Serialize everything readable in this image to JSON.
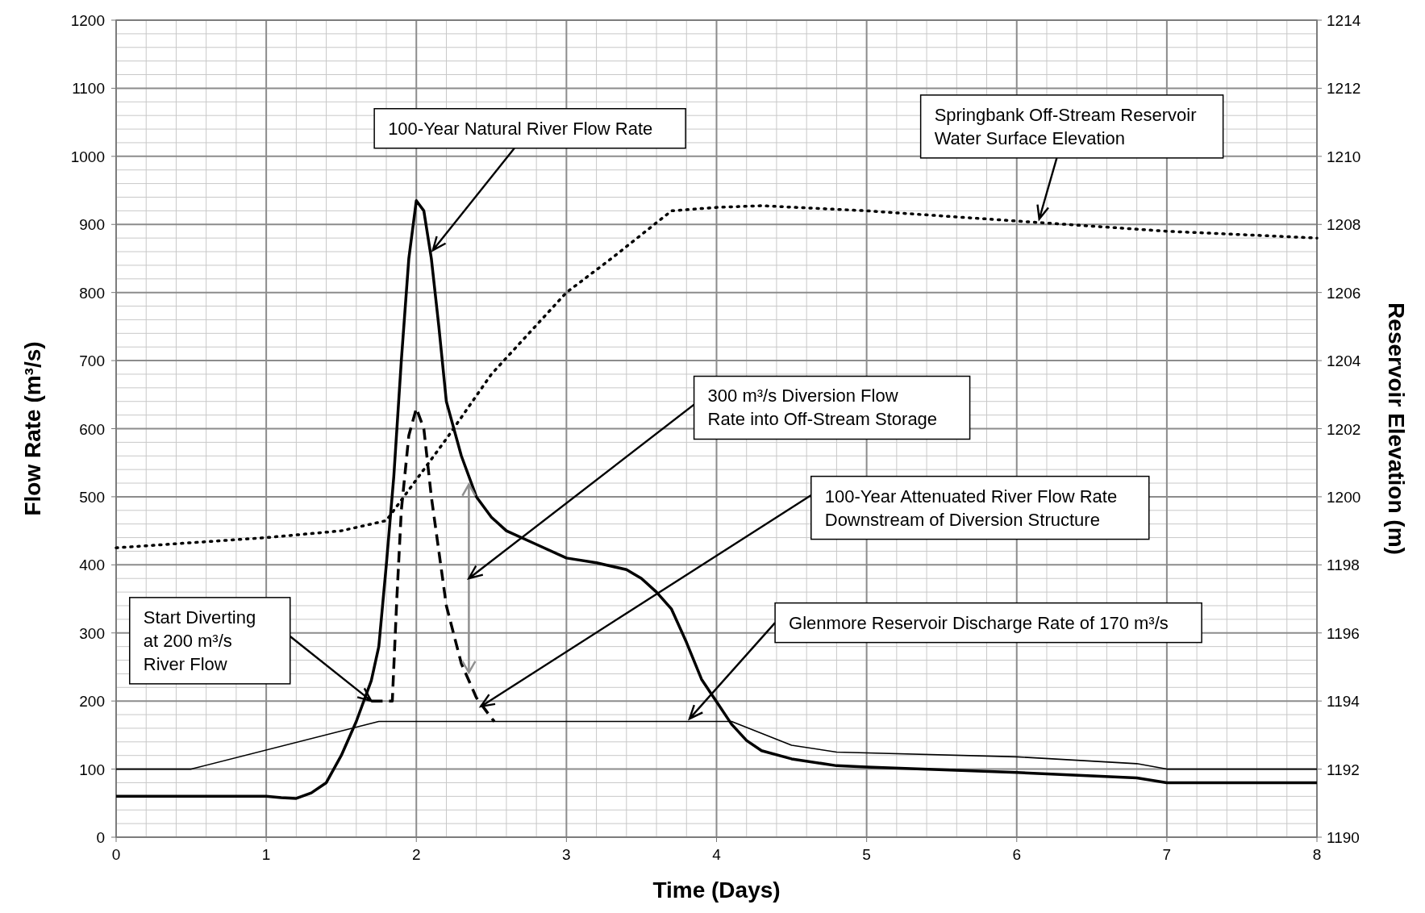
{
  "chart_data": {
    "type": "line",
    "xlabel": "Time (Days)",
    "ylabel": "Flow Rate (m³/s)",
    "y2label": "Reservoir Elevation (m)",
    "xlim": [
      0,
      8
    ],
    "xticks": [
      0,
      1,
      2,
      3,
      4,
      5,
      6,
      7,
      8
    ],
    "ylim": [
      0,
      1200
    ],
    "yticks": [
      0,
      100,
      200,
      300,
      400,
      500,
      600,
      700,
      800,
      900,
      1000,
      1100,
      1200
    ],
    "y2lim": [
      1190,
      1214
    ],
    "y2ticks": [
      1190,
      1192,
      1194,
      1196,
      1198,
      1200,
      1202,
      1204,
      1206,
      1208,
      1210,
      1212,
      1214
    ],
    "grid": true,
    "marker": "none",
    "series": [
      {
        "color": "#000000",
        "line_style": "solid",
        "x": [
          0,
          1,
          1.1,
          1.2,
          1.3,
          1.4,
          1.5,
          1.6,
          1.7,
          1.75,
          1.8,
          1.85,
          1.9,
          1.95,
          2,
          2.05,
          2.1,
          2.15,
          2.2,
          2.3,
          2.4,
          2.5,
          2.6,
          2.8,
          3,
          3.2,
          3.4,
          3.5,
          3.6,
          3.7,
          3.8,
          3.9,
          4,
          4.1,
          4.2,
          4.3,
          4.5,
          4.8,
          5,
          6,
          6.5,
          6.8,
          7,
          8
        ],
        "values": [
          60,
          60,
          58,
          57,
          65,
          80,
          120,
          170,
          230,
          280,
          400,
          530,
          700,
          850,
          935,
          920,
          850,
          750,
          640,
          560,
          500,
          470,
          450,
          430,
          410,
          403,
          393,
          380,
          360,
          335,
          286,
          232,
          199,
          166,
          142,
          127,
          115,
          105,
          103,
          95,
          90,
          87,
          80,
          80
        ]
      },
      {
        "color": "#000000",
        "line_style": "dashed",
        "x": [
          1.7,
          1.84,
          1.87,
          1.9,
          1.95,
          2,
          2.05,
          2.1,
          2.15,
          2.2,
          2.3,
          2.4,
          2.5,
          2.52
        ],
        "values": [
          200,
          200,
          350,
          480,
          590,
          630,
          600,
          500,
          420,
          340,
          255,
          205,
          175,
          170
        ]
      },
      {
        "color": "#000000",
        "line_style": "solid",
        "x": [
          0,
          0.5,
          1.75,
          4.1,
          4.5,
          4.8,
          6,
          6.8,
          7,
          8
        ],
        "values": [
          100,
          100,
          170,
          170,
          135,
          125,
          118,
          108,
          100,
          100
        ]
      },
      {
        "color": "#000000",
        "line_style": "dotted",
        "axis": "y2",
        "x": [
          0,
          1,
          1.5,
          1.8,
          2,
          2.2,
          2.5,
          3,
          3.3,
          3.5,
          3.7,
          4,
          4.3,
          5,
          6,
          7,
          8
        ],
        "values": [
          1198.5,
          1198.8,
          1199,
          1199.3,
          1200.5,
          1201.7,
          1203.6,
          1206,
          1207,
          1207.7,
          1208.4,
          1208.5,
          1208.55,
          1208.4,
          1208.1,
          1207.8,
          1207.6
        ]
      }
    ],
    "annotations": [
      {
        "text": "100-Year Natural River Flow Rate",
        "x": 2.11,
        "y": 862
      },
      {
        "text": "Springbank Off-Stream Reservoir\nWater Surface Elevation",
        "x": 6.15,
        "y": 908
      },
      "300 m³/s Diversion Flow\nRate into Off-Stream Storage",
      {
        "text": "100-Year Attenuated River Flow Rate\nDownstream of Diversion Structure",
        "x": 2.43,
        "y": 192
      },
      "Start Diverting\nat 200 m³/s\nRiver Flow",
      {
        "text": "Glenmore Reservoir Discharge Rate of 170 m³/s",
        "x": 3.82,
        "y": 174
      }
    ]
  }
}
